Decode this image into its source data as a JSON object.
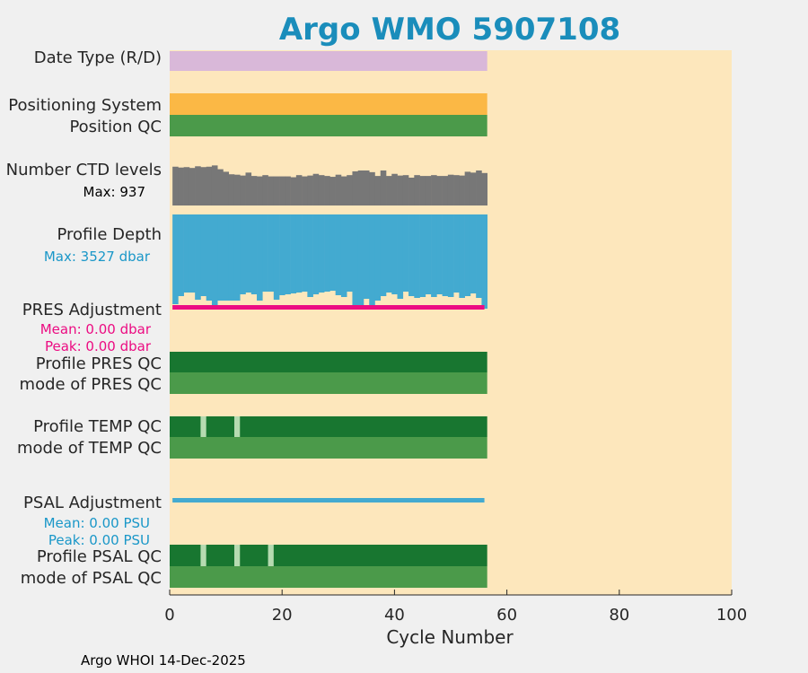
{
  "chart_data": {
    "type": "bar",
    "title": "Argo WMO 5907108",
    "xlabel": "Cycle Number",
    "xlim": [
      0,
      100
    ],
    "x_ticks": [
      "0",
      "20",
      "40",
      "60",
      "80",
      "100"
    ],
    "n_cycles": 56,
    "rows": {
      "date_type": "Date Type (R/D)",
      "positioning_system": "Positioning System",
      "position_qc": "Position QC",
      "ctd_levels": "Number CTD levels",
      "ctd_max": "Max: 937",
      "profile_depth": "Profile Depth",
      "depth_max": "Max: 3527 dbar",
      "pres_adjustment": "PRES Adjustment",
      "pres_mean": "Mean: 0.00 dbar",
      "pres_peak": "Peak: 0.00 dbar",
      "profile_pres_qc": "Profile PRES QC",
      "mode_pres_qc": "mode of PRES QC",
      "profile_temp_qc": "Profile TEMP QC",
      "mode_temp_qc": "mode of TEMP QC",
      "psal_adjustment": "PSAL Adjustment",
      "psal_mean": "Mean: 0.00 PSU",
      "psal_peak": "Peak: 0.00 PSU",
      "profile_psal_qc": "Profile PSAL QC",
      "mode_psal_qc": "mode of PSAL QC"
    },
    "ctd_levels_relative": [
      0.92,
      0.9,
      0.91,
      0.89,
      0.93,
      0.91,
      0.92,
      0.95,
      0.86,
      0.8,
      0.74,
      0.73,
      0.71,
      0.78,
      0.7,
      0.69,
      0.72,
      0.69,
      0.69,
      0.69,
      0.69,
      0.67,
      0.72,
      0.69,
      0.71,
      0.75,
      0.72,
      0.7,
      0.68,
      0.73,
      0.69,
      0.72,
      0.81,
      0.83,
      0.83,
      0.79,
      0.7,
      0.83,
      0.7,
      0.75,
      0.71,
      0.72,
      0.66,
      0.72,
      0.7,
      0.7,
      0.72,
      0.7,
      0.7,
      0.73,
      0.72,
      0.71,
      0.8,
      0.78,
      0.83,
      0.77
    ],
    "profile_depth_relative": [
      1.0,
      0.91,
      0.87,
      0.87,
      0.95,
      0.91,
      0.96,
      1.03,
      0.96,
      0.96,
      0.96,
      0.96,
      0.89,
      0.87,
      0.89,
      0.96,
      0.86,
      0.86,
      0.95,
      0.9,
      0.89,
      0.88,
      0.87,
      0.86,
      0.92,
      0.89,
      0.87,
      0.86,
      0.85,
      0.9,
      0.92,
      0.86,
      1.05,
      1.05,
      0.94,
      1.03,
      0.96,
      0.91,
      0.87,
      0.89,
      0.94,
      0.86,
      0.91,
      0.93,
      0.92,
      0.89,
      0.92,
      0.89,
      0.91,
      0.92,
      0.87,
      0.93,
      0.91,
      0.88,
      0.93,
      1.05
    ],
    "temp_qc_flag_cycles": [
      6,
      12
    ],
    "psal_qc_flag_cycles": [
      6,
      12,
      18
    ],
    "colors": {
      "background": "#fde7bc",
      "date_type": "#d9b8d9",
      "positioning_system": "#fbb845",
      "qc_good": "#4b9a4a",
      "profile_qc_good": "#187630",
      "qc_flag": "#b6dbb1",
      "ctd_levels": "#777777",
      "profile_depth": "#43aad0",
      "pres_adjustment": "#ec0c82",
      "psal_adjustment": "#43aad0",
      "title": "#1a8dbb",
      "depth_text": "#1a97c8",
      "psal_text": "#1a97c8",
      "pres_text": "#ec0c82"
    }
  },
  "footer": "Argo WHOI 14-Dec-2025"
}
